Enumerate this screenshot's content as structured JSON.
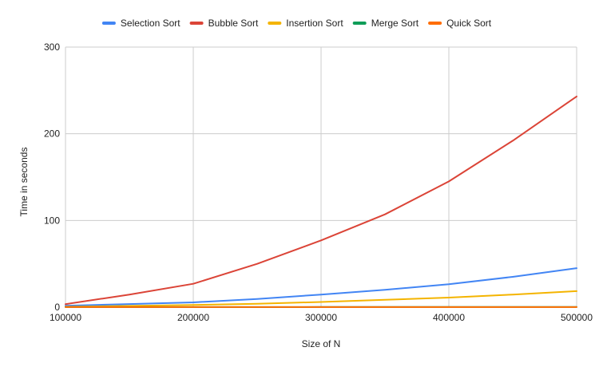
{
  "chart_data": {
    "type": "line",
    "title": "",
    "xlabel": "Size of N",
    "ylabel": "Time in seconds",
    "xlim": [
      100000,
      500000
    ],
    "ylim": [
      0,
      300
    ],
    "x_ticks": [
      "100000",
      "200000",
      "300000",
      "400000",
      "500000"
    ],
    "x_tick_values": [
      100000,
      200000,
      300000,
      400000,
      500000
    ],
    "y_ticks": [
      "0",
      "100",
      "200",
      "300"
    ],
    "y_tick_values": [
      0,
      100,
      200,
      300
    ],
    "grid": true,
    "legend_position": "top",
    "x": [
      100000,
      150000,
      200000,
      250000,
      300000,
      350000,
      400000,
      450000,
      500000
    ],
    "series": [
      {
        "name": "Selection Sort",
        "color": "#4285F4",
        "values": [
          1.6,
          3.6,
          5.5,
          9.5,
          14.5,
          20,
          26.5,
          35,
          45
        ]
      },
      {
        "name": "Bubble Sort",
        "color": "#DB4437",
        "values": [
          3.5,
          14.5,
          27,
          50,
          77,
          107,
          145,
          192,
          243
        ]
      },
      {
        "name": "Insertion Sort",
        "color": "#F4B400",
        "values": [
          0.5,
          1.5,
          2.5,
          4,
          6,
          8.5,
          11,
          14.5,
          18.5
        ]
      },
      {
        "name": "Merge Sort",
        "color": "#0F9D58",
        "values": [
          0.1,
          0.1,
          0.1,
          0.1,
          0.2,
          0.2,
          0.2,
          0.2,
          0.2
        ]
      },
      {
        "name": "Quick Sort",
        "color": "#FF6D01",
        "values": [
          0.1,
          0.1,
          0.1,
          0.1,
          0.1,
          0.1,
          0.1,
          0.1,
          0.1
        ]
      }
    ]
  }
}
